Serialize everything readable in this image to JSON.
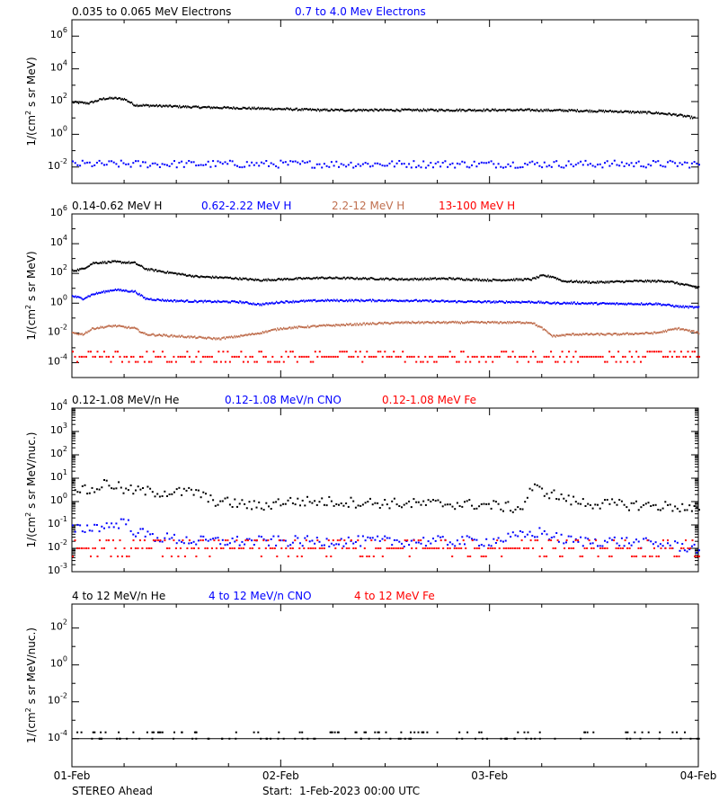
{
  "chart_data": [
    {
      "type": "scatter",
      "panel": "electrons",
      "ylabel": "1/(cm2 s sr MeV)",
      "ylabel_parts": [
        "1/(cm",
        "2",
        " s sr MeV)"
      ],
      "yscale": "log",
      "ylim": [
        0.001,
        10000000
      ],
      "yticks": [
        {
          "base": "10",
          "exp": "6"
        },
        {
          "base": "10",
          "exp": "4"
        },
        {
          "base": "10",
          "exp": "2"
        },
        {
          "base": "10",
          "exp": "0"
        },
        {
          "base": "10",
          "exp": "-2"
        }
      ],
      "ytick_values": [
        1000000,
        10000,
        100,
        1,
        0.01
      ],
      "xlim": [
        0,
        3
      ],
      "legend": [
        {
          "name": "0.035 to 0.065 MeV Electrons",
          "color": "#000000"
        },
        {
          "name": "0.7 to 4.0 Mev Electrons",
          "color": "#0000ff"
        }
      ],
      "series": [
        {
          "name": "0.035 to 0.065 MeV Electrons",
          "color": "#000000",
          "style": "dense",
          "x": [
            0,
            0.08,
            0.15,
            0.2,
            0.25,
            0.3,
            0.4,
            0.6,
            0.8,
            1.0,
            1.2,
            1.5,
            1.8,
            2.0,
            2.2,
            2.4,
            2.6,
            2.8,
            2.9,
            2.98
          ],
          "y": [
            90,
            80,
            150,
            160,
            140,
            60,
            55,
            45,
            40,
            35,
            30,
            30,
            30,
            30,
            30,
            28,
            25,
            20,
            15,
            10
          ]
        },
        {
          "name": "0.7 to 4.0 Mev Electrons",
          "color": "#0000ff",
          "style": "scatter",
          "x": [
            0,
            3
          ],
          "y": [
            0.015,
            0.015
          ]
        }
      ]
    },
    {
      "type": "scatter",
      "panel": "protons",
      "ylabel": "1/(cm2 s sr MeV)",
      "ylabel_parts": [
        "1/(cm",
        "2",
        " s sr MeV)"
      ],
      "yscale": "log",
      "ylim": [
        1e-05,
        1000000
      ],
      "yticks": [
        {
          "base": "10",
          "exp": "6"
        },
        {
          "base": "10",
          "exp": "4"
        },
        {
          "base": "10",
          "exp": "2"
        },
        {
          "base": "10",
          "exp": "0"
        },
        {
          "base": "10",
          "exp": "-2"
        },
        {
          "base": "10",
          "exp": "-4"
        }
      ],
      "ytick_values": [
        1000000,
        10000,
        100,
        1,
        0.01,
        0.0001
      ],
      "xlim": [
        0,
        3
      ],
      "legend": [
        {
          "name": "0.14-0.62 MeV H",
          "color": "#000000"
        },
        {
          "name": "0.62-2.22 MeV H",
          "color": "#0000ff"
        },
        {
          "name": "2.2-12 MeV H",
          "color": "#c07050"
        },
        {
          "name": "13-100 MeV H",
          "color": "#ff0000"
        }
      ],
      "series": [
        {
          "name": "0.14-0.62 MeV H",
          "color": "#000000",
          "style": "dense",
          "x": [
            0,
            0.05,
            0.1,
            0.2,
            0.3,
            0.35,
            0.45,
            0.6,
            0.75,
            0.9,
            1.0,
            1.2,
            1.4,
            1.6,
            1.8,
            2.0,
            2.2,
            2.25,
            2.3,
            2.35,
            2.5,
            2.7,
            2.85,
            2.95,
            3.0
          ],
          "y": [
            150,
            200,
            500,
            600,
            500,
            200,
            120,
            60,
            50,
            35,
            40,
            50,
            45,
            40,
            45,
            35,
            40,
            70,
            60,
            30,
            25,
            30,
            30,
            15,
            12
          ]
        },
        {
          "name": "0.62-2.22 MeV H",
          "color": "#0000ff",
          "style": "dense",
          "x": [
            0,
            0.05,
            0.1,
            0.2,
            0.3,
            0.35,
            0.45,
            0.6,
            0.8,
            0.9,
            1.0,
            1.2,
            1.4,
            1.6,
            1.8,
            2.0,
            2.2,
            2.3,
            2.4,
            2.6,
            2.8,
            2.9,
            3.0
          ],
          "y": [
            3,
            2,
            4,
            8,
            6,
            2,
            1.5,
            1.3,
            1.2,
            0.8,
            1.2,
            1.5,
            1.5,
            1.5,
            1.3,
            1.2,
            1.2,
            1.0,
            1.0,
            0.9,
            0.9,
            0.6,
            0.5
          ]
        },
        {
          "name": "2.2-12 MeV H",
          "color": "#c07050",
          "style": "dense",
          "x": [
            0,
            0.05,
            0.1,
            0.2,
            0.3,
            0.35,
            0.5,
            0.7,
            0.8,
            0.9,
            1.0,
            1.2,
            1.4,
            1.6,
            1.8,
            2.0,
            2.2,
            2.25,
            2.3,
            2.4,
            2.6,
            2.8,
            2.9,
            3.0
          ],
          "y": [
            0.01,
            0.008,
            0.02,
            0.03,
            0.02,
            0.008,
            0.006,
            0.004,
            0.006,
            0.01,
            0.02,
            0.03,
            0.04,
            0.05,
            0.05,
            0.05,
            0.05,
            0.02,
            0.006,
            0.008,
            0.008,
            0.01,
            0.02,
            0.01
          ]
        },
        {
          "name": "13-100 MeV H",
          "color": "#ff0000",
          "style": "bands",
          "x": [
            0,
            3
          ],
          "y": [
            0.00025,
            0.00025
          ]
        }
      ]
    },
    {
      "type": "scatter",
      "panel": "heavy-low",
      "ylabel": "1/(cm2 s sr MeV/nuc.)",
      "ylabel_parts": [
        "1/(cm",
        "2",
        " s sr MeV/nuc.)"
      ],
      "yscale": "log",
      "ylim": [
        0.001,
        10000
      ],
      "yticks": [
        {
          "base": "10",
          "exp": "4"
        },
        {
          "base": "10",
          "exp": "3"
        },
        {
          "base": "10",
          "exp": "2"
        },
        {
          "base": "10",
          "exp": "1"
        },
        {
          "base": "10",
          "exp": "0"
        },
        {
          "base": "10",
          "exp": "-1"
        },
        {
          "base": "10",
          "exp": "-2"
        },
        {
          "base": "10",
          "exp": "-3"
        }
      ],
      "ytick_values": [
        10000,
        1000,
        100,
        10,
        1,
        0.1,
        0.01,
        0.001
      ],
      "xlim": [
        0,
        3
      ],
      "legend": [
        {
          "name": "0.12-1.08 MeV/n He",
          "color": "#000000"
        },
        {
          "name": "0.12-1.08 MeV/n CNO",
          "color": "#0000ff"
        },
        {
          "name": "0.12-1.08 MeV Fe",
          "color": "#ff0000"
        }
      ],
      "series": [
        {
          "name": "0.12-1.08 MeV/n He",
          "color": "#000000",
          "style": "scatter",
          "x": [
            0,
            0.05,
            0.1,
            0.15,
            0.2,
            0.25,
            0.3,
            0.4,
            0.5,
            0.6,
            0.65,
            0.7,
            0.8,
            0.9,
            1.0,
            1.2,
            1.4,
            1.6,
            1.8,
            2.0,
            2.15,
            2.2,
            2.3,
            2.4,
            2.5,
            2.7,
            2.9,
            3.0
          ],
          "y": [
            5,
            3,
            3,
            6,
            5,
            3,
            3,
            2.5,
            2.5,
            2.5,
            1.2,
            1.0,
            0.8,
            0.6,
            1.0,
            1.0,
            0.9,
            0.8,
            0.8,
            0.7,
            0.5,
            4,
            2,
            1.0,
            0.8,
            0.7,
            0.6,
            0.4
          ]
        },
        {
          "name": "0.12-1.08 MeV/n CNO",
          "color": "#0000ff",
          "style": "scatter",
          "x": [
            0,
            0.1,
            0.2,
            0.25,
            0.3,
            0.4,
            0.6,
            0.8,
            1.0,
            1.5,
            2.0,
            2.25,
            2.3,
            2.4,
            2.6,
            2.8,
            3.0
          ],
          "y": [
            0.06,
            0.08,
            0.1,
            0.15,
            0.05,
            0.03,
            0.02,
            0.02,
            0.02,
            0.02,
            0.02,
            0.05,
            0.03,
            0.02,
            0.02,
            0.015,
            0.01
          ]
        },
        {
          "name": "0.12-1.08 MeV Fe",
          "color": "#ff0000",
          "style": "bands",
          "x": [
            0,
            3
          ],
          "y": [
            0.01,
            0.01
          ]
        }
      ]
    },
    {
      "type": "scatter",
      "panel": "heavy-high",
      "ylabel": "1/(cm2 s sr MeV/nuc.)",
      "ylabel_parts": [
        "1/(cm",
        "2",
        " s sr MeV/nuc.)"
      ],
      "yscale": "log",
      "ylim": [
        3e-06,
        2000
      ],
      "yticks": [
        {
          "base": "10",
          "exp": "2"
        },
        {
          "base": "10",
          "exp": "0"
        },
        {
          "base": "10",
          "exp": "-2"
        },
        {
          "base": "10",
          "exp": "-4"
        }
      ],
      "ytick_values": [
        100,
        1,
        0.01,
        0.0001
      ],
      "xlim": [
        0,
        3
      ],
      "xticks": [
        "01-Feb",
        "02-Feb",
        "03-Feb",
        "04-Feb"
      ],
      "legend": [
        {
          "name": "4 to 12 MeV/n He",
          "color": "#000000"
        },
        {
          "name": "4 to 12 MeV/n CNO",
          "color": "#0000ff"
        },
        {
          "name": "4 to 12 MeV Fe",
          "color": "#ff0000"
        }
      ],
      "series": [
        {
          "name": "4 to 12 MeV/n He",
          "color": "#000000",
          "style": "sparse",
          "x": [
            0,
            3
          ],
          "y": [
            0.0001,
            0.0001
          ]
        }
      ]
    }
  ],
  "footer": {
    "spacecraft": "STEREO Ahead",
    "start": "Start:  1-Feb-2023 00:00 UTC"
  }
}
